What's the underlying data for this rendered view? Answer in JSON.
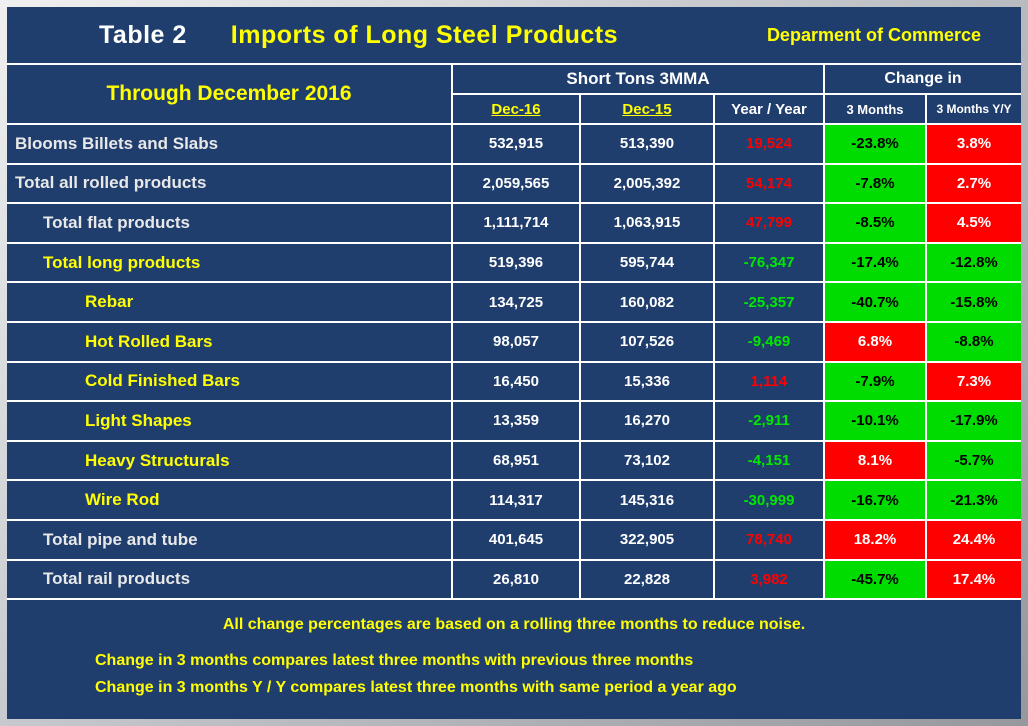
{
  "title": {
    "table_label": "Table 2",
    "main": "Imports of Long Steel Products",
    "org": "Deparment of Commerce"
  },
  "columns": {
    "period": "Through December 2016",
    "tons_group": "Short Tons 3MMA",
    "change_group": "Change in",
    "dec16": "Dec-16",
    "dec15": "Dec-15",
    "yoy": "Year / Year",
    "m3": "3 Months",
    "m3y": "3 Months Y/Y"
  },
  "rows": [
    {
      "label": "Blooms Billets and Slabs",
      "indent": 0,
      "label_style": "white",
      "dec16": "532,915",
      "dec15": "513,390",
      "yoy": "19,524",
      "yoy_style": "red",
      "chg3m": "-23.8%",
      "chg3m_style": "green",
      "chg3my": "3.8%",
      "chg3my_style": "red"
    },
    {
      "label": "Total all rolled products",
      "indent": 0,
      "label_style": "white",
      "dec16": "2,059,565",
      "dec15": "2,005,392",
      "yoy": "54,174",
      "yoy_style": "red",
      "chg3m": "-7.8%",
      "chg3m_style": "green",
      "chg3my": "2.7%",
      "chg3my_style": "red"
    },
    {
      "label": "Total flat products",
      "indent": 1,
      "label_style": "white",
      "dec16": "1,111,714",
      "dec15": "1,063,915",
      "yoy": "47,799",
      "yoy_style": "red",
      "chg3m": "-8.5%",
      "chg3m_style": "green",
      "chg3my": "4.5%",
      "chg3my_style": "red"
    },
    {
      "label": "Total long products",
      "indent": 1,
      "label_style": "yellow",
      "dec16": "519,396",
      "dec15": "595,744",
      "yoy": "-76,347",
      "yoy_style": "green",
      "chg3m": "-17.4%",
      "chg3m_style": "green",
      "chg3my": "-12.8%",
      "chg3my_style": "green"
    },
    {
      "label": "Rebar",
      "indent": 2,
      "label_style": "yellow",
      "dec16": "134,725",
      "dec15": "160,082",
      "yoy": "-25,357",
      "yoy_style": "green",
      "chg3m": "-40.7%",
      "chg3m_style": "green",
      "chg3my": "-15.8%",
      "chg3my_style": "green"
    },
    {
      "label": "Hot Rolled Bars",
      "indent": 2,
      "label_style": "yellow",
      "dec16": "98,057",
      "dec15": "107,526",
      "yoy": "-9,469",
      "yoy_style": "green",
      "chg3m": "6.8%",
      "chg3m_style": "red",
      "chg3my": "-8.8%",
      "chg3my_style": "green"
    },
    {
      "label": "Cold Finished Bars",
      "indent": 2,
      "label_style": "yellow",
      "dec16": "16,450",
      "dec15": "15,336",
      "yoy": "1,114",
      "yoy_style": "red",
      "chg3m": "-7.9%",
      "chg3m_style": "green",
      "chg3my": "7.3%",
      "chg3my_style": "red"
    },
    {
      "label": "Light Shapes",
      "indent": 2,
      "label_style": "yellow",
      "dec16": "13,359",
      "dec15": "16,270",
      "yoy": "-2,911",
      "yoy_style": "green",
      "chg3m": "-10.1%",
      "chg3m_style": "green",
      "chg3my": "-17.9%",
      "chg3my_style": "green"
    },
    {
      "label": "Heavy Structurals",
      "indent": 2,
      "label_style": "yellow",
      "dec16": "68,951",
      "dec15": "73,102",
      "yoy": "-4,151",
      "yoy_style": "green",
      "chg3m": "8.1%",
      "chg3m_style": "red",
      "chg3my": "-5.7%",
      "chg3my_style": "green"
    },
    {
      "label": "Wire Rod",
      "indent": 2,
      "label_style": "yellow",
      "dec16": "114,317",
      "dec15": "145,316",
      "yoy": "-30,999",
      "yoy_style": "green",
      "chg3m": "-16.7%",
      "chg3m_style": "green",
      "chg3my": "-21.3%",
      "chg3my_style": "green"
    },
    {
      "label": "Total pipe and tube",
      "indent": 1,
      "label_style": "white",
      "dec16": "401,645",
      "dec15": "322,905",
      "yoy": "78,740",
      "yoy_style": "red",
      "chg3m": "18.2%",
      "chg3m_style": "red",
      "chg3my": "24.4%",
      "chg3my_style": "red"
    },
    {
      "label": "Total rail products",
      "indent": 1,
      "label_style": "white",
      "dec16": "26,810",
      "dec15": "22,828",
      "yoy": "3,982",
      "yoy_style": "red",
      "chg3m": "-45.7%",
      "chg3m_style": "green",
      "chg3my": "17.4%",
      "chg3my_style": "red"
    }
  ],
  "footnotes": {
    "line1": "All change percentages are based on a rolling three months to reduce noise.",
    "line2": "Change in 3 months compares latest three months with previous three months",
    "line3": "Change in 3 months  Y / Y compares latest three months with same period a year ago"
  },
  "colors": {
    "background": "#1F3E6E",
    "yellow": "#FFFF00",
    "increase_red": "#FF0000",
    "decrease_green": "#00DC00",
    "gridline": "#FFFFFF"
  },
  "chart_data": {
    "type": "table",
    "title": "Table 2  Imports of Long Steel Products",
    "source": "Deparment of Commerce",
    "period": "Through December 2016",
    "units": "Short Tons 3MMA",
    "columns": [
      "Product",
      "Dec-16",
      "Dec-15",
      "Year / Year",
      "Change in 3 Months",
      "Change in 3 Months Y/Y"
    ],
    "rows": [
      [
        "Blooms Billets and Slabs",
        532915,
        513390,
        19524,
        "-23.8%",
        "3.8%"
      ],
      [
        "Total all rolled products",
        2059565,
        2005392,
        54174,
        "-7.8%",
        "2.7%"
      ],
      [
        "Total flat products",
        1111714,
        1063915,
        47799,
        "-8.5%",
        "4.5%"
      ],
      [
        "Total long products",
        519396,
        595744,
        -76347,
        "-17.4%",
        "-12.8%"
      ],
      [
        "Rebar",
        134725,
        160082,
        -25357,
        "-40.7%",
        "-15.8%"
      ],
      [
        "Hot Rolled Bars",
        98057,
        107526,
        -9469,
        "6.8%",
        "-8.8%"
      ],
      [
        "Cold Finished Bars",
        16450,
        15336,
        1114,
        "-7.9%",
        "7.3%"
      ],
      [
        "Light Shapes",
        13359,
        16270,
        -2911,
        "-10.1%",
        "-17.9%"
      ],
      [
        "Heavy Structurals",
        68951,
        73102,
        -4151,
        "8.1%",
        "-5.7%"
      ],
      [
        "Wire Rod",
        114317,
        145316,
        -30999,
        "-16.7%",
        "-21.3%"
      ],
      [
        "Total pipe and tube",
        401645,
        322905,
        78740,
        "18.2%",
        "24.4%"
      ],
      [
        "Total rail products",
        26810,
        22828,
        3982,
        "-45.7%",
        "17.4%"
      ]
    ]
  }
}
